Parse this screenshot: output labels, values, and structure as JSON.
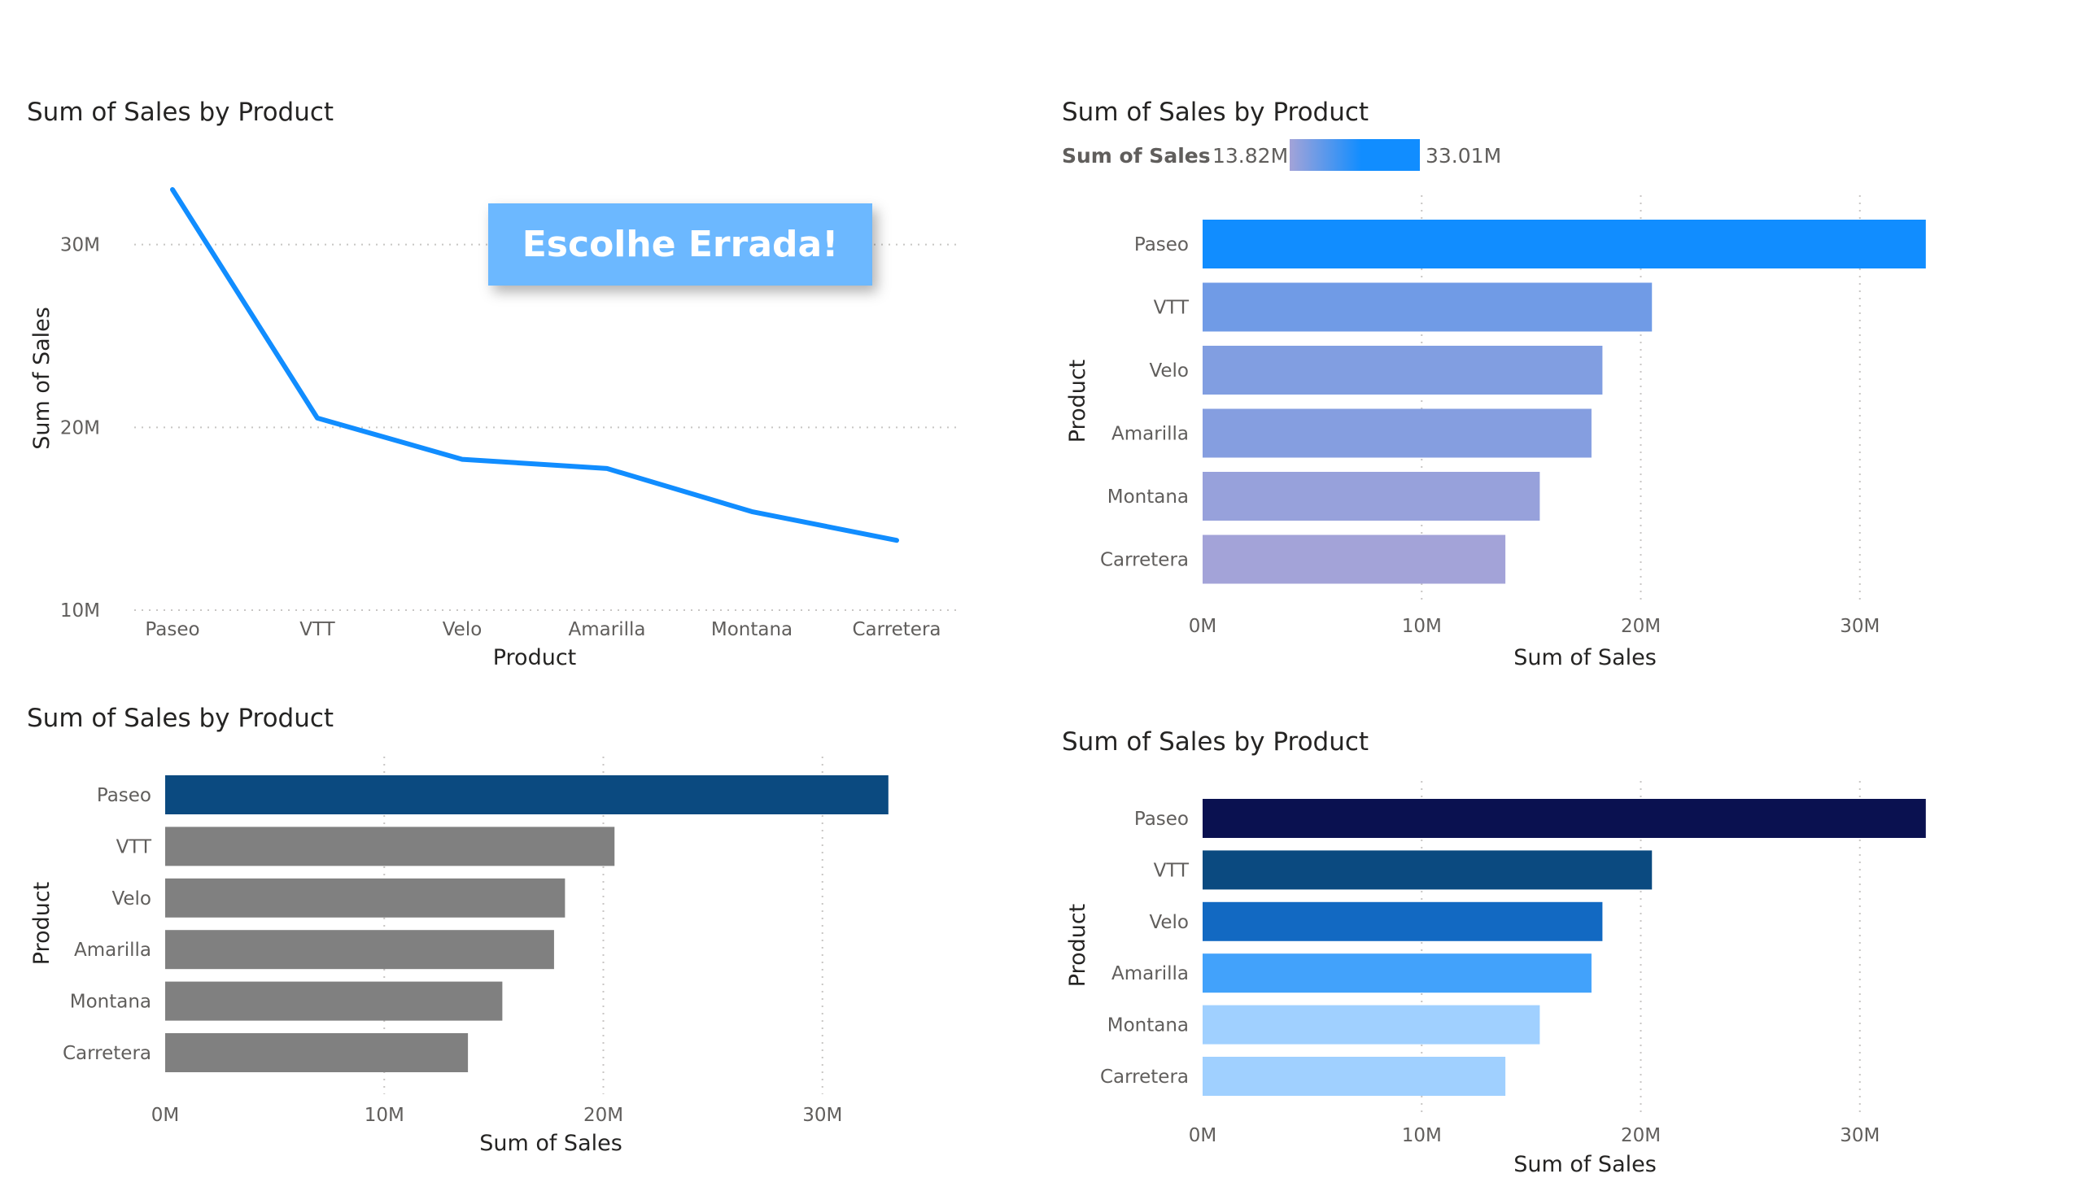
{
  "callout": {
    "label": "Escolhe Errada!",
    "bg": "#6cb8ff"
  },
  "chart_data": [
    {
      "type": "line",
      "title": "Sum of Sales by Product",
      "xlabel": "Product",
      "ylabel": "Sum of Sales",
      "categories": [
        "Paseo",
        "VTT",
        "Velo",
        "Amarilla",
        "Montana",
        "Carretera"
      ],
      "values": [
        33.01,
        20.51,
        18.25,
        17.75,
        15.39,
        13.82
      ],
      "value_unit": "M",
      "y_ticks": [
        "10M",
        "20M",
        "30M"
      ],
      "ylim": [
        10,
        33.5
      ],
      "grid": true,
      "color": "#118dff"
    },
    {
      "type": "bar",
      "title": "Sum of Sales by Product",
      "xlabel": "Sum of Sales",
      "ylabel": "Product",
      "categories": [
        "Paseo",
        "VTT",
        "Velo",
        "Amarilla",
        "Montana",
        "Carretera"
      ],
      "values": [
        33.01,
        20.51,
        18.25,
        17.75,
        15.39,
        13.82
      ],
      "value_unit": "M",
      "x_ticks": [
        "0M",
        "10M",
        "20M",
        "30M"
      ],
      "xlim": [
        0,
        33.5
      ],
      "grid": true,
      "legend": {
        "title": "Sum of  Sales",
        "min_label": "13.82M",
        "max_label": "33.01M",
        "min_color": "#a3a3d8",
        "max_color": "#118dff",
        "placement": "top-left"
      }
    },
    {
      "type": "bar",
      "title": "Sum of Sales by Product",
      "xlabel": "Sum of Sales",
      "ylabel": "Product",
      "categories": [
        "Paseo",
        "VTT",
        "Velo",
        "Amarilla",
        "Montana",
        "Carretera"
      ],
      "values": [
        33.01,
        20.51,
        18.25,
        17.75,
        15.39,
        13.82
      ],
      "value_unit": "M",
      "x_ticks": [
        "0M",
        "10M",
        "20M",
        "30M"
      ],
      "xlim": [
        0,
        33.5
      ],
      "grid": true,
      "colors": [
        "#0b4a80",
        "#808080",
        "#808080",
        "#808080",
        "#808080",
        "#808080"
      ]
    },
    {
      "type": "bar",
      "title": "Sum of Sales by Product",
      "xlabel": "Sum of Sales",
      "ylabel": "Product",
      "categories": [
        "Paseo",
        "VTT",
        "Velo",
        "Amarilla",
        "Montana",
        "Carretera"
      ],
      "values": [
        33.01,
        20.51,
        18.25,
        17.75,
        15.39,
        13.82
      ],
      "value_unit": "M",
      "x_ticks": [
        "0M",
        "10M",
        "20M",
        "30M"
      ],
      "xlim": [
        0,
        33.5
      ],
      "grid": true,
      "colors": [
        "#0a1150",
        "#0b4a80",
        "#1269c2",
        "#42a2fb",
        "#a0d0ff",
        "#a0d0ff"
      ]
    }
  ]
}
